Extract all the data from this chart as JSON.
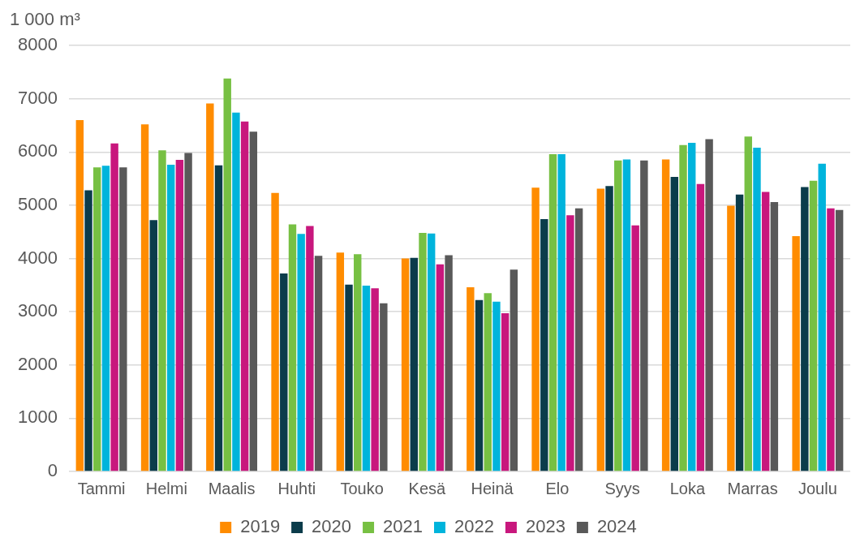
{
  "chart_data": {
    "type": "bar",
    "ylabel": "1 000 m³",
    "categories": [
      "Tammi",
      "Helmi",
      "Maalis",
      "Huhti",
      "Touko",
      "Kesä",
      "Heinä",
      "Elo",
      "Syys",
      "Loka",
      "Marras",
      "Joulu"
    ],
    "series": [
      {
        "name": "2019",
        "color": "#ff8c00",
        "values": [
          6600,
          6520,
          6910,
          5230,
          4110,
          4000,
          3460,
          5330,
          5310,
          5860,
          4990,
          4420
        ]
      },
      {
        "name": "2020",
        "color": "#0b3c4b",
        "values": [
          5280,
          4720,
          5750,
          3720,
          3510,
          4010,
          3220,
          4740,
          5360,
          5530,
          5200,
          5340
        ]
      },
      {
        "name": "2021",
        "color": "#77c043",
        "values": [
          5710,
          6030,
          7380,
          4640,
          4080,
          4480,
          3350,
          5960,
          5840,
          6130,
          6290,
          5460
        ]
      },
      {
        "name": "2022",
        "color": "#00b4dc",
        "values": [
          5740,
          5760,
          6740,
          4460,
          3490,
          4470,
          3190,
          5960,
          5860,
          6170,
          6080,
          5780
        ]
      },
      {
        "name": "2023",
        "color": "#c8177d",
        "values": [
          6160,
          5850,
          6570,
          4610,
          3440,
          3890,
          2970,
          4810,
          4620,
          5400,
          5250,
          4940
        ]
      },
      {
        "name": "2024",
        "color": "#595959",
        "values": [
          5710,
          5980,
          6380,
          4050,
          3160,
          4060,
          3790,
          4940,
          5840,
          6240,
          5060,
          4910
        ]
      }
    ],
    "ylim": [
      0,
      8000
    ],
    "yticks": [
      0,
      1000,
      2000,
      3000,
      4000,
      5000,
      6000,
      7000,
      8000
    ],
    "grid": "y",
    "legend": "bottom"
  }
}
